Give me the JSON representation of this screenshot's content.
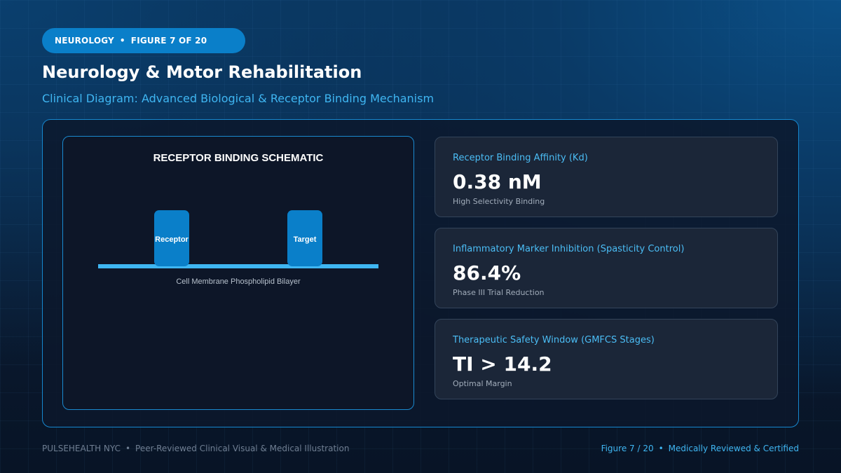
{
  "header": {
    "badge_section": "NEUROLOGY",
    "badge_separator": "•",
    "badge_figure": "FIGURE 7 OF 20",
    "title": "Neurology & Motor Rehabilitation",
    "subtitle": "Clinical Diagram: Advanced Biological & Receptor Binding Mechanism"
  },
  "diagram": {
    "title": "RECEPTOR BINDING SCHEMATIC",
    "nodes": [
      {
        "label": "Receptor"
      },
      {
        "label": "Target"
      }
    ],
    "membrane_label": "Cell Membrane Phospholipid Bilayer"
  },
  "stats": [
    {
      "label": "Receptor Binding Affinity (Kd)",
      "value": "0.38 nM",
      "note": "High Selectivity Binding"
    },
    {
      "label": "Inflammatory Marker Inhibition (Spasticity Control)",
      "value": "86.4%",
      "note": "Phase III Trial Reduction"
    },
    {
      "label": "Therapeutic Safety Window (GMFCS Stages)",
      "value": "TI > 14.2",
      "note": "Optimal Margin"
    }
  ],
  "footer": {
    "brand": "PULSEHEALTH NYC",
    "separator": "•",
    "tagline": "Peer-Reviewed Clinical Visual & Medical Illustration",
    "figure": "Figure 7 / 20",
    "certification": "Medically Reviewed & Certified"
  },
  "colors": {
    "accent": "#0a7fc9",
    "accent_text": "#3fb6f2",
    "panel_border": "#1688cf",
    "card_bg": "#1b2638"
  }
}
